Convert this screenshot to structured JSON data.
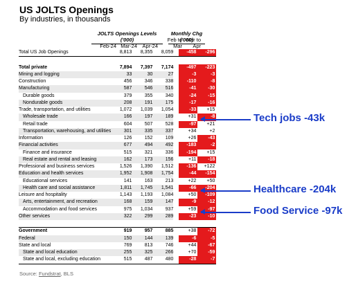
{
  "title": "US JOLTS Openings",
  "subtitle": "By industries, in thousands",
  "levels_group": "JOLTS Openings Levels ('000)",
  "change_group": "Monthly Chg ('000)",
  "levels_cols": [
    "Feb-24",
    "Mar-24",
    "Apr-24"
  ],
  "change_cols": [
    {
      "line1": "Feb to",
      "line2": "Mar"
    },
    {
      "line1": "Mar to",
      "line2": "Apr"
    }
  ],
  "rows": [
    {
      "label": "Total US Job Openings",
      "v": [
        "8,813",
        "8,355",
        "8,059"
      ],
      "c": [
        "-458",
        "-296"
      ],
      "neg": [
        true,
        true
      ],
      "indent": false,
      "bold": false,
      "shade": false,
      "line": "bot"
    },
    {
      "label": "",
      "v": [
        "",
        "",
        ""
      ],
      "c": [
        "",
        ""
      ],
      "neg": [
        false,
        false
      ],
      "indent": false,
      "bold": false,
      "shade": false
    },
    {
      "label": "Total private",
      "v": [
        "7,894",
        "7,397",
        "7,174"
      ],
      "c": [
        "-497",
        "-223"
      ],
      "neg": [
        true,
        true
      ],
      "indent": false,
      "bold": true,
      "shade": false
    },
    {
      "label": "Mining and logging",
      "v": [
        "33",
        "30",
        "27"
      ],
      "c": [
        "-3",
        "-3"
      ],
      "neg": [
        true,
        true
      ],
      "indent": false,
      "bold": false,
      "shade": true
    },
    {
      "label": "Construction",
      "v": [
        "456",
        "346",
        "338"
      ],
      "c": [
        "-110",
        "-8"
      ],
      "neg": [
        true,
        true
      ],
      "indent": false,
      "bold": false,
      "shade": false
    },
    {
      "label": "Manufacturing",
      "v": [
        "587",
        "546",
        "516"
      ],
      "c": [
        "-41",
        "-30"
      ],
      "neg": [
        true,
        true
      ],
      "indent": false,
      "bold": false,
      "shade": true
    },
    {
      "label": "Durable goods",
      "v": [
        "379",
        "355",
        "340"
      ],
      "c": [
        "-24",
        "-15"
      ],
      "neg": [
        true,
        true
      ],
      "indent": true,
      "bold": false,
      "shade": false
    },
    {
      "label": "Nondurable goods",
      "v": [
        "208",
        "191",
        "175"
      ],
      "c": [
        "-17",
        "-16"
      ],
      "neg": [
        true,
        true
      ],
      "indent": true,
      "bold": false,
      "shade": true
    },
    {
      "label": "Trade, transportation, and utilities",
      "v": [
        "1,072",
        "1,039",
        "1,054"
      ],
      "c": [
        "-33",
        "+15"
      ],
      "neg": [
        true,
        false
      ],
      "indent": false,
      "bold": false,
      "shade": false
    },
    {
      "label": "Wholesale trade",
      "v": [
        "166",
        "197",
        "189"
      ],
      "c": [
        "+31",
        "-8"
      ],
      "neg": [
        false,
        true
      ],
      "indent": true,
      "bold": false,
      "shade": true
    },
    {
      "label": "Retail trade",
      "v": [
        "604",
        "507",
        "528"
      ],
      "c": [
        "-97",
        "+21"
      ],
      "neg": [
        true,
        false
      ],
      "indent": true,
      "bold": false,
      "shade": false
    },
    {
      "label": "Transportation, warehousing, and utilities",
      "v": [
        "301",
        "335",
        "337"
      ],
      "c": [
        "+34",
        "+2"
      ],
      "neg": [
        false,
        false
      ],
      "indent": true,
      "bold": false,
      "shade": true
    },
    {
      "label": "Information",
      "v": [
        "126",
        "152",
        "109"
      ],
      "c": [
        "+26",
        "-43"
      ],
      "neg": [
        false,
        true
      ],
      "indent": false,
      "bold": false,
      "shade": false
    },
    {
      "label": "Financial activities",
      "v": [
        "677",
        "494",
        "492"
      ],
      "c": [
        "-183",
        "-2"
      ],
      "neg": [
        true,
        true
      ],
      "indent": false,
      "bold": false,
      "shade": true
    },
    {
      "label": "Finance and insurance",
      "v": [
        "515",
        "321",
        "336"
      ],
      "c": [
        "-194",
        "+15"
      ],
      "neg": [
        true,
        false
      ],
      "indent": true,
      "bold": false,
      "shade": false
    },
    {
      "label": "Real estate and rental and leasing",
      "v": [
        "162",
        "173",
        "156"
      ],
      "c": [
        "+11",
        "-18"
      ],
      "neg": [
        false,
        true
      ],
      "indent": true,
      "bold": false,
      "shade": true
    },
    {
      "label": "Professional and business services",
      "v": [
        "1,526",
        "1,390",
        "1,512"
      ],
      "c": [
        "-136",
        "+122"
      ],
      "neg": [
        true,
        false
      ],
      "indent": false,
      "bold": false,
      "shade": false
    },
    {
      "label": "Education and health services",
      "v": [
        "1,952",
        "1,908",
        "1,754"
      ],
      "c": [
        "-44",
        "-154"
      ],
      "neg": [
        true,
        true
      ],
      "indent": false,
      "bold": false,
      "shade": true
    },
    {
      "label": "Educational services",
      "v": [
        "141",
        "163",
        "213"
      ],
      "c": [
        "+22",
        "+50"
      ],
      "neg": [
        false,
        false
      ],
      "indent": true,
      "bold": false,
      "shade": false
    },
    {
      "label": "Health care and social assistance",
      "v": [
        "1,811",
        "1,745",
        "1,541"
      ],
      "c": [
        "-66",
        "-204"
      ],
      "neg": [
        true,
        true
      ],
      "indent": true,
      "bold": false,
      "shade": true
    },
    {
      "label": "Leisure and hospitality",
      "v": [
        "1,143",
        "1,193",
        "1,084"
      ],
      "c": [
        "+50",
        "-109"
      ],
      "neg": [
        false,
        true
      ],
      "indent": false,
      "bold": false,
      "shade": false
    },
    {
      "label": "Arts, entertainment, and recreation",
      "v": [
        "168",
        "159",
        "147"
      ],
      "c": [
        "-9",
        "-12"
      ],
      "neg": [
        true,
        true
      ],
      "indent": true,
      "bold": false,
      "shade": true
    },
    {
      "label": "Accommodation and food services",
      "v": [
        "975",
        "1,034",
        "937"
      ],
      "c": [
        "+59",
        "-97"
      ],
      "neg": [
        false,
        true
      ],
      "indent": true,
      "bold": false,
      "shade": false
    },
    {
      "label": "Other services",
      "v": [
        "322",
        "299",
        "289"
      ],
      "c": [
        "-23",
        "-10"
      ],
      "neg": [
        true,
        true
      ],
      "indent": false,
      "bold": false,
      "shade": true
    },
    {
      "label": "",
      "v": [
        "",
        "",
        ""
      ],
      "c": [
        "",
        ""
      ],
      "neg": [
        false,
        false
      ],
      "indent": false,
      "bold": false,
      "shade": false
    },
    {
      "label": "Government",
      "v": [
        "919",
        "957",
        "885"
      ],
      "c": [
        "+38",
        "-72"
      ],
      "neg": [
        false,
        true
      ],
      "indent": false,
      "bold": true,
      "shade": false,
      "line": "top"
    },
    {
      "label": "Federal",
      "v": [
        "150",
        "144",
        "139"
      ],
      "c": [
        "-6",
        "-5"
      ],
      "neg": [
        true,
        true
      ],
      "indent": false,
      "bold": false,
      "shade": true
    },
    {
      "label": "State and local",
      "v": [
        "769",
        "813",
        "746"
      ],
      "c": [
        "+44",
        "-67"
      ],
      "neg": [
        false,
        true
      ],
      "indent": false,
      "bold": false,
      "shade": false
    },
    {
      "label": "State and local education",
      "v": [
        "255",
        "325",
        "266"
      ],
      "c": [
        "+70",
        "-59"
      ],
      "neg": [
        false,
        true
      ],
      "indent": true,
      "bold": false,
      "shade": true
    },
    {
      "label": "State and local, excluding education",
      "v": [
        "515",
        "487",
        "480"
      ],
      "c": [
        "-28",
        "-7"
      ],
      "neg": [
        true,
        true
      ],
      "indent": true,
      "bold": false,
      "shade": false,
      "line": "bot"
    }
  ],
  "annotations": {
    "tech": "Tech jobs -43k",
    "health": "Healthcare -204k",
    "food": "Food Service -97k"
  },
  "source": {
    "prefix": "Source: ",
    "link": "Fundstrat",
    "suffix": ", BLS"
  },
  "colors": {
    "negative_bg": "#e41a1c",
    "annotation": "#1a3cc8",
    "shade": "#e9e9e9"
  }
}
